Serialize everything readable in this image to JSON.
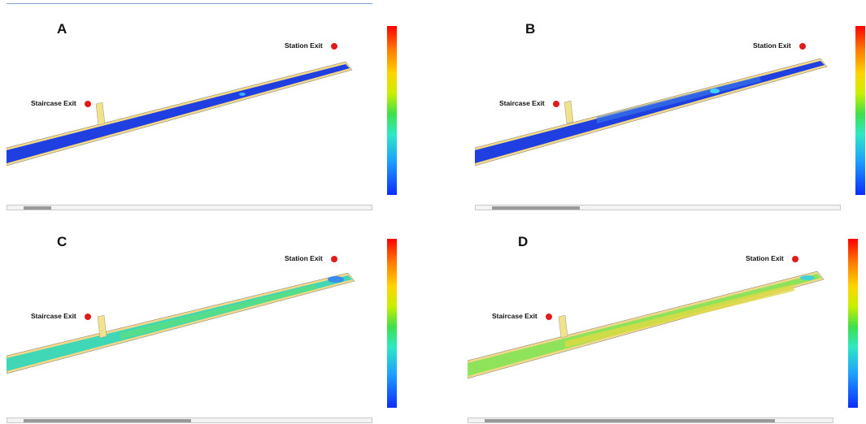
{
  "panels": [
    {
      "letter": "A",
      "staircase_label": "Staircase Exit",
      "station_label": "Station Exit",
      "progress": 0.08,
      "floor_color": "#1f3fe0",
      "flow_color": "#1f3fe0"
    },
    {
      "letter": "B",
      "staircase_label": "Staircase Exit",
      "station_label": "Station Exit",
      "progress": 0.25,
      "floor_color": "#1f3fe0",
      "flow_color": "#3a7de8"
    },
    {
      "letter": "C",
      "staircase_label": "Staircase Exit",
      "station_label": "Station Exit",
      "progress": 0.48,
      "floor_color": "#3fd7b6",
      "flow_color": "#5fe07a"
    },
    {
      "letter": "D",
      "staircase_label": "Staircase Exit",
      "station_label": "Station Exit",
      "progress": 0.83,
      "floor_color": "#8fe35a",
      "flow_color": "#e0d843"
    }
  ],
  "colors": {
    "marker": "#e21b1b",
    "tunnel_edge": "#f2d98a"
  }
}
